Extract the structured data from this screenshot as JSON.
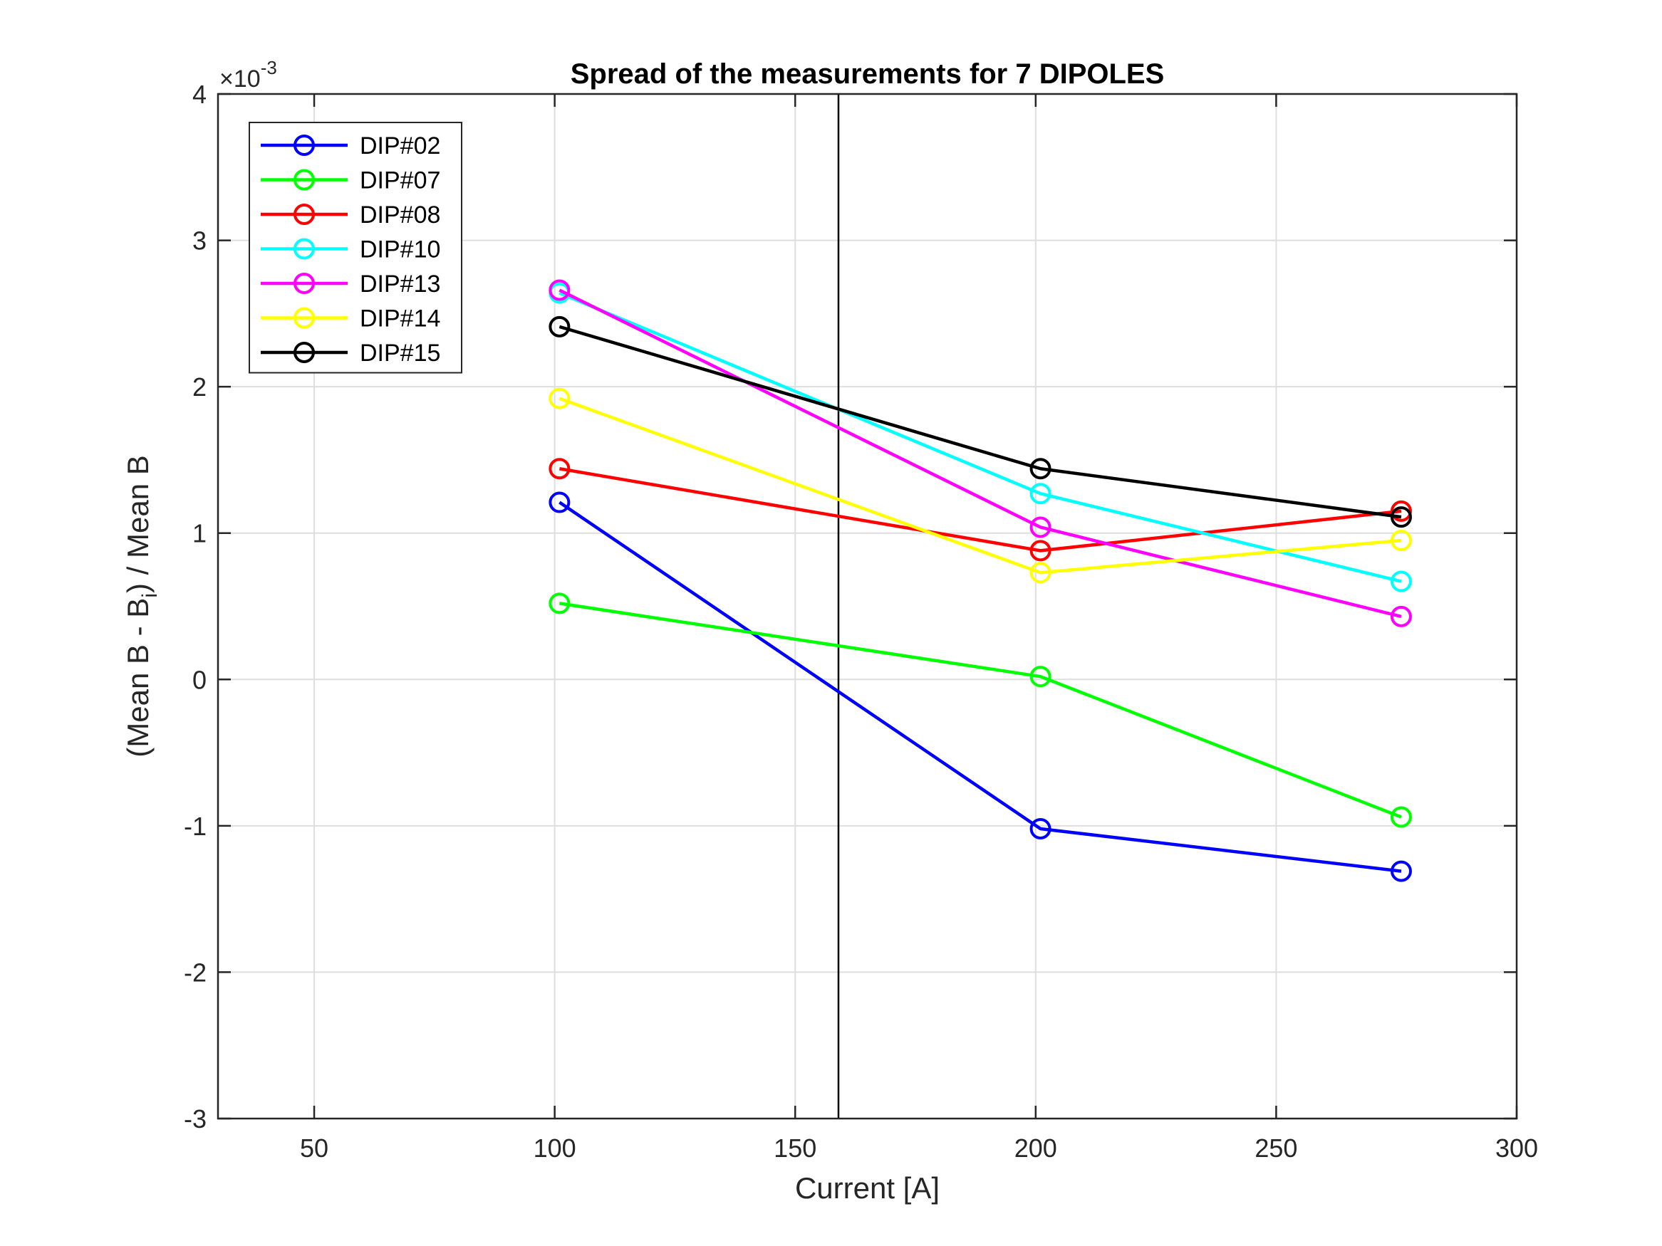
{
  "chart_data": {
    "type": "line",
    "title": "Spread of the measurements for 7 DIPOLES",
    "xlabel": "Current [A]",
    "ylabel": {
      "prefix": "(Mean B - B",
      "subscript": "i",
      "suffix": ") / Mean B"
    },
    "y_exponent": {
      "base": "×10",
      "power": "-3"
    },
    "xlim": [
      30,
      300
    ],
    "ylim": [
      -3,
      4
    ],
    "x_ticks": [
      50,
      100,
      150,
      200,
      250,
      300
    ],
    "y_ticks": [
      -3,
      -2,
      -1,
      0,
      1,
      2,
      3,
      4
    ],
    "grid": true,
    "legend_position": "top-left",
    "vertical_line": {
      "x": 159
    },
    "x": [
      101,
      201,
      276
    ],
    "series": [
      {
        "name": "DIP#02",
        "color": "#0000ff",
        "values": [
          1.21,
          -1.02,
          -1.31
        ]
      },
      {
        "name": "DIP#07",
        "color": "#00ff00",
        "values": [
          0.52,
          0.02,
          -0.94
        ]
      },
      {
        "name": "DIP#08",
        "color": "#ff0000",
        "values": [
          1.44,
          0.88,
          1.15
        ]
      },
      {
        "name": "DIP#10",
        "color": "#00ffff",
        "values": [
          2.64,
          1.27,
          0.67
        ]
      },
      {
        "name": "DIP#13",
        "color": "#ff00ff",
        "values": [
          2.66,
          1.04,
          0.43
        ]
      },
      {
        "name": "DIP#14",
        "color": "#ffff00",
        "values": [
          1.92,
          0.73,
          0.95
        ]
      },
      {
        "name": "DIP#15",
        "color": "#000000",
        "values": [
          2.41,
          1.44,
          1.11
        ]
      }
    ]
  }
}
